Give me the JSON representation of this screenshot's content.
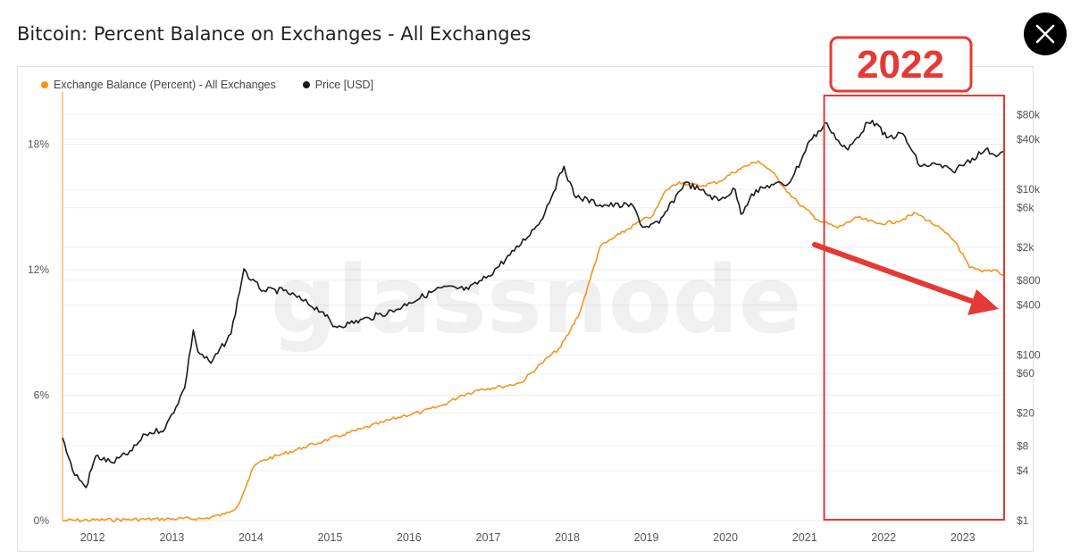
{
  "header": {
    "title": "Bitcoin: Percent Balance on Exchanges - All Exchanges"
  },
  "icons": {
    "close": "close-icon"
  },
  "colors": {
    "balance": "#f7931a",
    "price": "#1a1a1a",
    "highlight": "#e53935",
    "grid": "#efefef"
  },
  "watermark": "glassnode",
  "annotation": {
    "label": "2022",
    "box_from": "2021-04-01",
    "box_to": "2023-08-01"
  },
  "chart_data": {
    "type": "line",
    "title": "Bitcoin: Percent Balance on Exchanges - All Exchanges",
    "x_type": "date",
    "x_ticks": [
      "2012",
      "2013",
      "2014",
      "2015",
      "2016",
      "2017",
      "2018",
      "2019",
      "2020",
      "2021",
      "2022",
      "2023"
    ],
    "xlim": [
      "2011-08-15",
      "2023-07-15"
    ],
    "legend_position": "top-left",
    "grid": true,
    "y_left": {
      "ticks": [
        0,
        6,
        12,
        18
      ],
      "tick_labels": [
        "0%",
        "6%",
        "12%",
        "18%"
      ],
      "ylim": [
        0,
        20.5
      ],
      "unit": "%"
    },
    "y_right": {
      "scale": "log",
      "ticks": [
        1,
        4,
        8,
        20,
        60,
        100,
        400,
        800,
        2000,
        6000,
        10000,
        40000,
        80000
      ],
      "tick_labels": [
        "$1",
        "$4",
        "$8",
        "$20",
        "$60",
        "$100",
        "$400",
        "$800",
        "$2k",
        "$6k",
        "$10k",
        "$40k",
        "$80k"
      ],
      "ylim": [
        1,
        150000
      ]
    },
    "series": [
      {
        "name": "Exchange Balance (Percent) - All Exchanges",
        "axis": "left",
        "color": "#f7931a",
        "points": [
          [
            "2011-08-15",
            0
          ],
          [
            "2012-06-01",
            0.05
          ],
          [
            "2013-06-01",
            0.1
          ],
          [
            "2013-09-01",
            0.3
          ],
          [
            "2013-11-01",
            0.7
          ],
          [
            "2013-12-15",
            1.8
          ],
          [
            "2014-01-15",
            2.6
          ],
          [
            "2014-03-01",
            2.9
          ],
          [
            "2014-06-01",
            3.2
          ],
          [
            "2014-09-01",
            3.5
          ],
          [
            "2014-12-01",
            3.8
          ],
          [
            "2015-03-01",
            4.1
          ],
          [
            "2015-06-01",
            4.4
          ],
          [
            "2015-09-01",
            4.7
          ],
          [
            "2015-12-01",
            5.0
          ],
          [
            "2016-03-01",
            5.2
          ],
          [
            "2016-06-01",
            5.5
          ],
          [
            "2016-09-01",
            6.0
          ],
          [
            "2016-12-01",
            6.3
          ],
          [
            "2017-03-01",
            6.4
          ],
          [
            "2017-06-01",
            6.6
          ],
          [
            "2017-09-01",
            7.5
          ],
          [
            "2017-12-01",
            8.3
          ],
          [
            "2018-01-15",
            9.1
          ],
          [
            "2018-03-01",
            10.0
          ],
          [
            "2018-04-15",
            11.5
          ],
          [
            "2018-06-01",
            13.1
          ],
          [
            "2018-09-01",
            13.7
          ],
          [
            "2018-12-01",
            14.3
          ],
          [
            "2019-02-01",
            14.6
          ],
          [
            "2019-04-01",
            15.8
          ],
          [
            "2019-06-01",
            16.2
          ],
          [
            "2019-09-01",
            16.0
          ],
          [
            "2019-12-01",
            16.2
          ],
          [
            "2020-03-01",
            16.8
          ],
          [
            "2020-06-01",
            17.2
          ],
          [
            "2020-08-01",
            16.7
          ],
          [
            "2020-10-01",
            15.9
          ],
          [
            "2020-12-01",
            15.2
          ],
          [
            "2021-03-01",
            14.4
          ],
          [
            "2021-06-01",
            14.0
          ],
          [
            "2021-09-01",
            14.5
          ],
          [
            "2021-12-01",
            14.2
          ],
          [
            "2022-03-01",
            14.3
          ],
          [
            "2022-06-01",
            14.7
          ],
          [
            "2022-09-01",
            14.1
          ],
          [
            "2022-12-01",
            13.3
          ],
          [
            "2023-02-01",
            12.1
          ],
          [
            "2023-04-01",
            11.9
          ],
          [
            "2023-06-01",
            12.0
          ],
          [
            "2023-07-15",
            11.7
          ]
        ]
      },
      {
        "name": "Price [USD]",
        "axis": "right",
        "color": "#1a1a1a",
        "points": [
          [
            "2011-08-15",
            10
          ],
          [
            "2011-10-01",
            4
          ],
          [
            "2011-12-01",
            2.5
          ],
          [
            "2012-01-15",
            6
          ],
          [
            "2012-04-01",
            5
          ],
          [
            "2012-07-01",
            7
          ],
          [
            "2012-09-01",
            11
          ],
          [
            "2012-12-01",
            13
          ],
          [
            "2013-03-01",
            40
          ],
          [
            "2013-04-10",
            200
          ],
          [
            "2013-05-01",
            110
          ],
          [
            "2013-07-01",
            80
          ],
          [
            "2013-10-01",
            180
          ],
          [
            "2013-11-30",
            1100
          ],
          [
            "2014-01-01",
            800
          ],
          [
            "2014-03-01",
            600
          ],
          [
            "2014-06-01",
            600
          ],
          [
            "2014-09-01",
            450
          ],
          [
            "2014-12-01",
            330
          ],
          [
            "2015-01-15",
            220
          ],
          [
            "2015-04-01",
            240
          ],
          [
            "2015-07-01",
            280
          ],
          [
            "2015-11-01",
            350
          ],
          [
            "2016-01-01",
            430
          ],
          [
            "2016-06-01",
            650
          ],
          [
            "2016-10-01",
            620
          ],
          [
            "2017-01-01",
            900
          ],
          [
            "2017-05-01",
            1800
          ],
          [
            "2017-09-01",
            4200
          ],
          [
            "2017-12-17",
            19000
          ],
          [
            "2018-02-01",
            8500
          ],
          [
            "2018-06-01",
            6500
          ],
          [
            "2018-11-01",
            6300
          ],
          [
            "2018-12-15",
            3500
          ],
          [
            "2019-03-01",
            3900
          ],
          [
            "2019-06-26",
            12000
          ],
          [
            "2019-09-01",
            10000
          ],
          [
            "2019-12-01",
            7300
          ],
          [
            "2020-02-15",
            10000
          ],
          [
            "2020-03-13",
            5000
          ],
          [
            "2020-05-01",
            8800
          ],
          [
            "2020-08-01",
            11500
          ],
          [
            "2020-10-15",
            11500
          ],
          [
            "2020-12-15",
            22000
          ],
          [
            "2021-01-15",
            36000
          ],
          [
            "2021-04-14",
            63000
          ],
          [
            "2021-06-15",
            35000
          ],
          [
            "2021-07-20",
            30000
          ],
          [
            "2021-10-20",
            64000
          ],
          [
            "2021-11-10",
            68000
          ],
          [
            "2022-01-15",
            42000
          ],
          [
            "2022-03-30",
            47000
          ],
          [
            "2022-06-18",
            19000
          ],
          [
            "2022-09-01",
            20000
          ],
          [
            "2022-11-15",
            16500
          ],
          [
            "2023-01-15",
            21000
          ],
          [
            "2023-04-15",
            30000
          ],
          [
            "2023-06-15",
            26000
          ],
          [
            "2023-07-15",
            30000
          ]
        ]
      }
    ]
  }
}
